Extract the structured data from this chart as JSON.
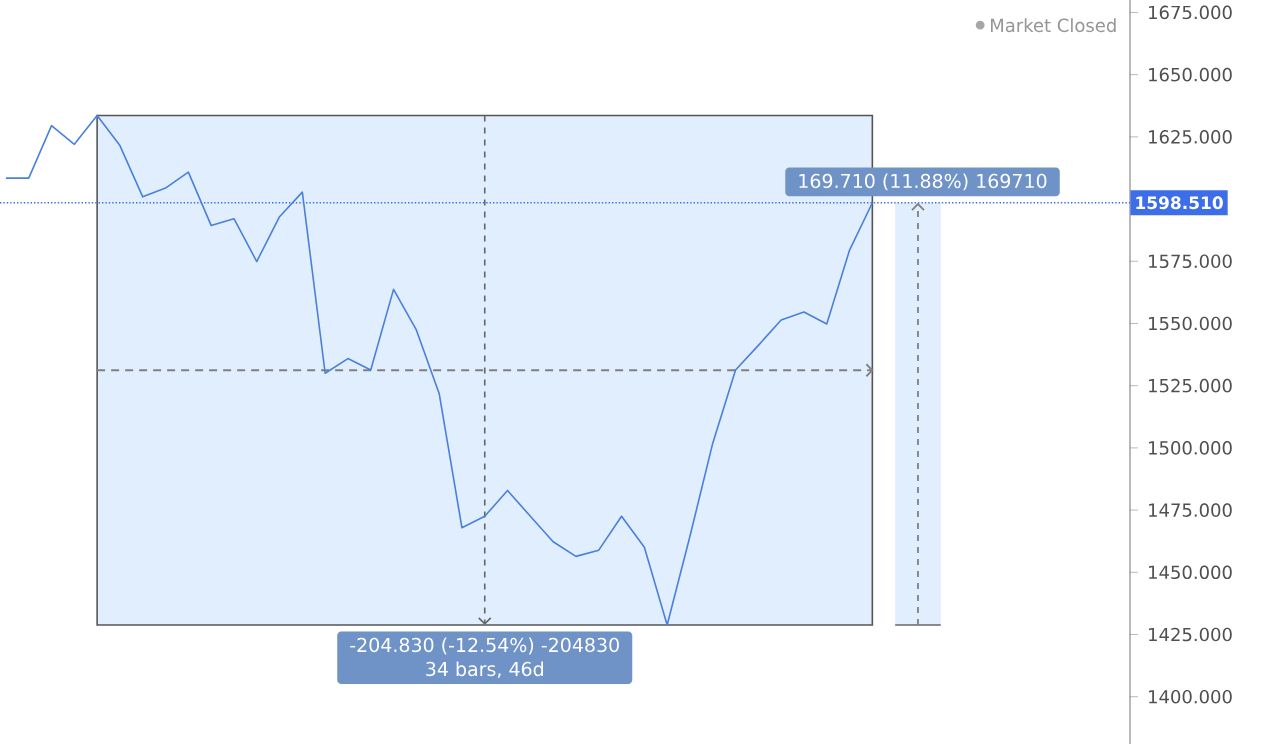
{
  "chart_data": {
    "type": "line",
    "categories": [
      null,
      null,
      null,
      null,
      null,
      null,
      null,
      null,
      null,
      null,
      null,
      null,
      null,
      null,
      null,
      null,
      null,
      null,
      null,
      null,
      null,
      null,
      null,
      null,
      null,
      null,
      null,
      null,
      null,
      null,
      null,
      null,
      null,
      null,
      null,
      null,
      null,
      null,
      null
    ],
    "values": [
      1608.4,
      1608.4,
      1629.5,
      1622.0,
      1633.6,
      1621.5,
      1600.9,
      1604.4,
      1610.8,
      1589.4,
      1592.1,
      1574.9,
      1592.9,
      1602.8,
      1530.0,
      1535.9,
      1531.3,
      1563.7,
      1547.4,
      1521.9,
      1467.9,
      1472.5,
      1482.9,
      1472.5,
      1462.3,
      1456.4,
      1458.9,
      1472.5,
      1460.1,
      1428.8,
      1464.5,
      1501.9,
      1531.3,
      1541.2,
      1551.4,
      1554.6,
      1549.8,
      1579.5,
      1598.51
    ],
    "color": "#4a80db",
    "ylim": [
      1381,
      1680
    ],
    "yticks": [
      {
        "value": 1400,
        "label": "1400.000"
      },
      {
        "value": 1425,
        "label": "1425.000"
      },
      {
        "value": 1450,
        "label": "1450.000"
      },
      {
        "value": 1475,
        "label": "1475.000"
      },
      {
        "value": 1500,
        "label": "1500.000"
      },
      {
        "value": 1525,
        "label": "1525.000"
      },
      {
        "value": 1550,
        "label": "1550.000"
      },
      {
        "value": 1575,
        "label": "1575.000"
      },
      {
        "value": 1625,
        "label": "1625.000"
      },
      {
        "value": 1650,
        "label": "1650.000"
      },
      {
        "value": 1675,
        "label": "1675.000"
      }
    ],
    "tick_labels": "y",
    "grid": false,
    "legend": false,
    "marker": "none",
    "line_style": "solid",
    "ref_lines": [
      {
        "axis": "y",
        "value": 1598.51,
        "label": "1598.510",
        "color": "#3d6ee8",
        "line_style": "dotted"
      },
      {
        "axis": "y",
        "value": 1531.2,
        "color": "#808080",
        "line_style": "dashed"
      }
    ],
    "bands": [
      {
        "axis": "y",
        "from": 1428.8,
        "to": 1633.6,
        "color": "#e1eefe"
      }
    ],
    "annotations": [
      "-204.830 (-12.54%) -204830",
      "34 bars, 46d",
      "169.710 (11.88%) 169710",
      "Market Closed"
    ]
  }
}
